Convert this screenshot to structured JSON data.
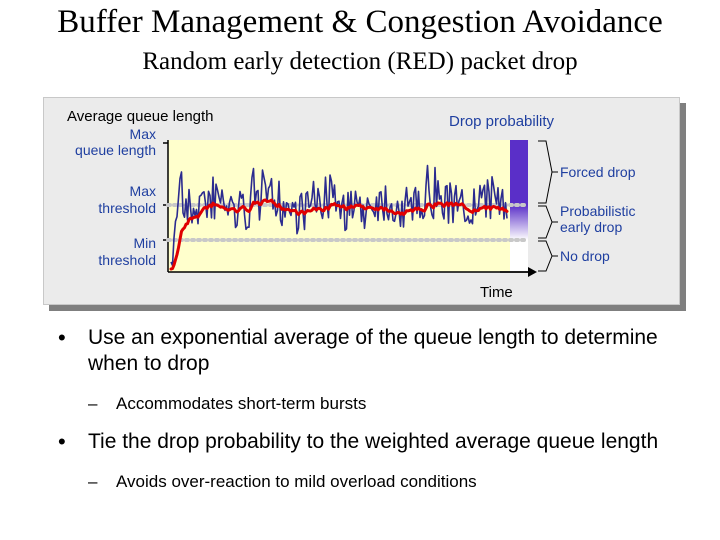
{
  "slide": {
    "title": "Buffer Management & Congestion Avoidance",
    "subtitle": "Random early detection (RED) packet drop"
  },
  "diagram": {
    "y_label": "Average queue length",
    "drop_prob_label": "Drop probability",
    "x_label": "Time",
    "y_levels": [
      {
        "label_1": "Max",
        "label_2": "queue length"
      },
      {
        "label_1": "Max",
        "label_2": "threshold"
      },
      {
        "label_1": "Min",
        "label_2": "threshold"
      }
    ],
    "regions": [
      {
        "label_1": "Forced drop",
        "label_2": ""
      },
      {
        "label_1": "Probabilistic",
        "label_2": "early drop"
      },
      {
        "label_1": "No drop",
        "label_2": ""
      }
    ],
    "colors": {
      "plot_bg": "#ffffcc",
      "queue_line": "#2b2b8f",
      "average_line": "#e00000",
      "threshold_dots": "#c8c8c8",
      "forced_bar": "#5a2fc8",
      "label_blue": "#1f3fa0"
    }
  },
  "bullets": [
    {
      "symbol": "•",
      "text": "Use an exponential average of the queue length to determine when to drop",
      "sub": {
        "symbol": "–",
        "text": "Accommodates short-term bursts"
      }
    },
    {
      "symbol": "•",
      "text": "Tie the drop probability to the weighted average queue length",
      "sub": {
        "symbol": "–",
        "text": "Avoids over-reaction to mild overload conditions"
      }
    }
  ]
}
